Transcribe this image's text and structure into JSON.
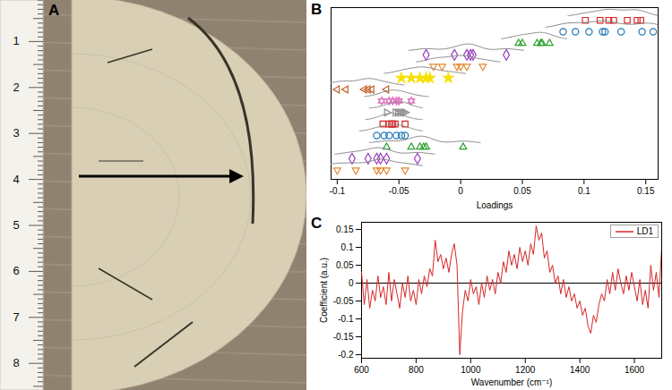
{
  "chart_data": [
    {
      "type": "image",
      "panel": "A",
      "ruler_labels": [
        1,
        2,
        3,
        4,
        5,
        6,
        7,
        8
      ]
    },
    {
      "type": "scatter",
      "panel": "B",
      "x_label": "Loadings",
      "xlim": [
        -0.105,
        0.16
      ],
      "xticks": [
        -0.1,
        -0.05,
        0,
        0.05,
        0.1,
        0.15
      ],
      "tick_labels": "x",
      "series": [
        {
          "color": "#d62728",
          "marker": "square",
          "values": [
            0.101,
            0.113,
            0.12,
            0.124,
            0.135,
            0.143,
            0.146
          ]
        },
        {
          "color": "#1f77b4",
          "marker": "circle",
          "values": [
            0.083,
            0.093,
            0.104,
            0.115,
            0.117,
            0.13,
            0.147,
            0.156
          ]
        },
        {
          "color": "#2ca02c",
          "marker": "triangle",
          "values": [
            0.047,
            0.05,
            0.062,
            0.065,
            0.066,
            0.072
          ]
        },
        {
          "color": "#9b3fbf",
          "marker": "diamond",
          "values": [
            -0.028,
            -0.005,
            0.005,
            0.008,
            0.01,
            0.037
          ]
        },
        {
          "color": "#e3852b",
          "marker": "triangle-down",
          "values": [
            -0.022,
            -0.015,
            -0.003,
            0,
            0.005,
            0.018
          ]
        },
        {
          "color": "#f5e100",
          "marker": "star",
          "values": [
            -0.048,
            -0.04,
            -0.033,
            -0.028,
            -0.025,
            -0.01
          ]
        },
        {
          "color": "#c0612b",
          "marker": "triangle-left",
          "values": [
            -0.1,
            -0.093,
            -0.078,
            -0.075,
            -0.072,
            -0.06
          ]
        },
        {
          "color": "#e377c2",
          "marker": "hexagram",
          "values": [
            -0.064,
            -0.058,
            -0.055,
            -0.052,
            -0.05,
            -0.04
          ]
        },
        {
          "color": "#8c8c8c",
          "marker": "triangle-right",
          "values": [
            -0.06,
            -0.053,
            -0.051,
            -0.049,
            -0.047,
            -0.045
          ]
        },
        {
          "color": "#d62728",
          "marker": "square",
          "values": [
            -0.063,
            -0.058,
            -0.056,
            -0.055,
            -0.053,
            -0.045
          ]
        },
        {
          "color": "#1f77b4",
          "marker": "circle",
          "values": [
            -0.068,
            -0.062,
            -0.058,
            -0.052,
            -0.048,
            -0.045
          ]
        },
        {
          "color": "#2ca02c",
          "marker": "triangle",
          "values": [
            -0.06,
            -0.04,
            -0.033,
            -0.03,
            -0.028,
            0.002
          ]
        },
        {
          "color": "#9b3fbf",
          "marker": "diamond",
          "values": [
            -0.088,
            -0.075,
            -0.068,
            -0.065,
            -0.06,
            -0.035
          ]
        },
        {
          "color": "#e3852b",
          "marker": "triangle-down",
          "values": [
            -0.1,
            -0.085,
            -0.068,
            -0.065,
            -0.06,
            -0.045
          ]
        }
      ]
    },
    {
      "type": "line",
      "panel": "C",
      "x_label": "Wavenumber (cm⁻¹)",
      "y_label": "Coefficient (a.u.)",
      "xlim": [
        600,
        1700
      ],
      "xticks": [
        600,
        800,
        1000,
        1200,
        1400,
        1600
      ],
      "ylim": [
        -0.21,
        0.17
      ],
      "yticks": [
        -0.2,
        -0.15,
        -0.1,
        -0.05,
        0,
        0.05,
        0.1,
        0.15
      ],
      "hline": 0,
      "legend": "top-right",
      "x": [
        600,
        610,
        620,
        630,
        640,
        650,
        660,
        670,
        680,
        690,
        700,
        710,
        720,
        730,
        740,
        750,
        760,
        770,
        780,
        790,
        800,
        810,
        820,
        830,
        840,
        850,
        860,
        870,
        880,
        890,
        900,
        910,
        920,
        930,
        940,
        950,
        960,
        970,
        980,
        990,
        1000,
        1010,
        1020,
        1030,
        1040,
        1050,
        1060,
        1070,
        1080,
        1090,
        1100,
        1110,
        1120,
        1130,
        1140,
        1150,
        1160,
        1170,
        1180,
        1190,
        1200,
        1210,
        1220,
        1230,
        1240,
        1250,
        1260,
        1270,
        1280,
        1290,
        1300,
        1310,
        1320,
        1330,
        1340,
        1350,
        1360,
        1370,
        1380,
        1390,
        1400,
        1410,
        1420,
        1430,
        1440,
        1450,
        1460,
        1470,
        1480,
        1490,
        1500,
        1510,
        1520,
        1530,
        1540,
        1550,
        1560,
        1570,
        1580,
        1590,
        1600,
        1610,
        1620,
        1630,
        1640,
        1650,
        1660,
        1670,
        1680,
        1690,
        1700
      ],
      "series": [
        {
          "name": "LD1",
          "color": "#d62728",
          "values": [
            0.03,
            -0.06,
            0.01,
            -0.07,
            -0.02,
            -0.05,
            0.02,
            -0.04,
            -0.01,
            -0.06,
            0.03,
            -0.05,
            0.01,
            -0.03,
            -0.07,
            0,
            -0.04,
            0.02,
            -0.05,
            -0.02,
            -0.06,
            0.01,
            -0.03,
            0.02,
            -0.01,
            0.04,
            0.02,
            0.12,
            0.06,
            0.08,
            0.04,
            0.07,
            0.03,
            0.08,
            0.11,
            0.05,
            -0.2,
            -0.08,
            -0.02,
            -0.05,
            0.01,
            -0.03,
            -0.01,
            -0.06,
            0,
            -0.04,
            0.02,
            -0.02,
            0.01,
            -0.03,
            0.03,
            0,
            0.06,
            0.03,
            0.09,
            0.05,
            0.08,
            0.04,
            0.1,
            0.06,
            0.09,
            0.05,
            0.11,
            0.08,
            0.16,
            0.12,
            0.14,
            0.07,
            0.09,
            0.03,
            0.05,
            0,
            0.02,
            -0.03,
            0.01,
            -0.04,
            -0.01,
            -0.05,
            -0.03,
            -0.07,
            -0.05,
            -0.09,
            -0.07,
            -0.12,
            -0.14,
            -0.09,
            -0.11,
            -0.06,
            -0.03,
            -0.05,
            0.01,
            -0.03,
            0.03,
            -0.02,
            0.04,
            0,
            -0.03,
            0.02,
            -0.02,
            0.03,
            -0.01,
            -0.05,
            0.01,
            -0.06,
            -0.02,
            -0.07,
            0.05,
            -0.02,
            0.03,
            -0.04,
            0.1
          ]
        }
      ]
    }
  ]
}
